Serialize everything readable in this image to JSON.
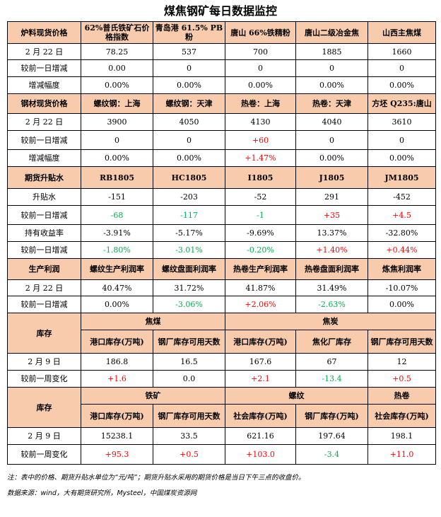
{
  "title": "煤焦钢矿每日数据监控",
  "raw": {
    "header": [
      "炉料现货价格",
      "62%普氏铁矿石价格指数",
      "青岛港 61.5% PB粉",
      "唐山 66%铁精粉",
      "唐山二级冶金焦",
      "山西主焦煤"
    ],
    "date_label": "2 月 22 日",
    "values": [
      "78.25",
      "537",
      "700",
      "1885",
      "1660"
    ],
    "change_label": "较前一日增减",
    "changes": [
      "0.00",
      "0",
      "0",
      "0",
      "0"
    ],
    "pct_label": "增减幅度",
    "pcts": [
      "0.00%",
      "0.00%",
      "0.00%",
      "0.00%",
      "0.00%"
    ]
  },
  "steel": {
    "header": [
      "钢材现货价格",
      "螺纹钢：上海",
      "螺纹钢：天津",
      "热卷：上海",
      "热卷：天津",
      "方坯 Q235:唐山"
    ],
    "date_label": "2 月 22 日",
    "values": [
      "3900",
      "4050",
      "4130",
      "4040",
      "3610"
    ],
    "change_label": "较前一日增减",
    "changes": [
      "0",
      "0",
      "+60",
      "0",
      "0"
    ],
    "pct_label": "增减幅度",
    "pcts": [
      "0.00%",
      "0.00%",
      "+1.47%",
      "0.00%",
      "0.00%"
    ]
  },
  "futures": {
    "header": [
      "期货升贴水",
      "RB1805",
      "HC1805",
      "I1805",
      "J1805",
      "JM1805"
    ],
    "basis_label": "升贴水",
    "basis": [
      "-151",
      "-203",
      "-52",
      "291",
      "-452"
    ],
    "change_label": "较前一日增减",
    "basis_changes": [
      "-68",
      "-117",
      "-1",
      "+35",
      "+4.5"
    ],
    "yield_label": "持有收益率",
    "yields": [
      "-3.91%",
      "-5.17%",
      "-9.69%",
      "13.37%",
      "-32.80%"
    ],
    "yield_changes": [
      "-1.80%",
      "-3.01%",
      "-0.20%",
      "+1.40%",
      "+0.44%"
    ]
  },
  "profit": {
    "header": [
      "生产利润",
      "螺纹生产利润率",
      "螺纹盘面利润率",
      "热卷生产利润率",
      "热卷盘面利润率",
      "炼焦利润率"
    ],
    "date_label": "2 月 22 日",
    "values": [
      "40.47%",
      "31.72%",
      "41.87%",
      "31.49%",
      "-10.07%"
    ],
    "change_label": "较前一日增减",
    "changes": [
      "0.00%",
      "-3.06%",
      "+2.06%",
      "-2.63%",
      "0.00%"
    ]
  },
  "inventory1": {
    "label": "库存",
    "group1": "焦煤",
    "group2": "焦炭",
    "sub": [
      "港口库存(万吨)",
      "钢厂库存可用天数",
      "港口库存(万吨)",
      "焦化厂库存",
      "钢厂库存可用天数"
    ],
    "date_label": "2 月 9 日",
    "values": [
      "186.8",
      "16.5",
      "167.6",
      "67",
      "12"
    ],
    "change_label": "较前一周变化",
    "changes": [
      "+1.6",
      "0.0",
      "+2.1",
      "-13.4",
      "+0.5"
    ]
  },
  "inventory2": {
    "label": "库存",
    "group1": "铁矿",
    "group2": "螺纹",
    "group3": "热卷",
    "sub": [
      "港口库存(万吨)",
      "钢厂库存可用天数",
      "社会库存(万吨)",
      "钢厂库存(万吨)",
      "社会库存(万吨)"
    ],
    "date_label": "2 月 9 日",
    "values": [
      "15238.1",
      "33.5",
      "621.16",
      "197.64",
      "198.1"
    ],
    "change_label": "较前一周变化",
    "changes": [
      "+95.3",
      "+0.5",
      "+103.0",
      "-3.4",
      "+11.0"
    ]
  },
  "notes": {
    "note": "注：表中的价格、期货升贴水单位为“元/吨”；期货升贴水采用的期货价格是当日下午三点的收盘价。",
    "source": "数据来源：wind，大有期货研究所，Mysteel，中国煤炭资源网"
  },
  "colors": {
    "header_bg": "#f8cbad",
    "up": "#ff0000",
    "down": "#00b050"
  }
}
